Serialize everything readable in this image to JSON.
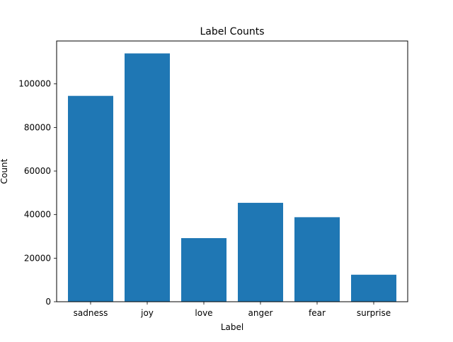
{
  "chart_data": {
    "type": "bar",
    "title": "Label Counts",
    "xlabel": "Label",
    "ylabel": "Count",
    "categories": [
      "sadness",
      "joy",
      "love",
      "anger",
      "fear",
      "surprise"
    ],
    "values": [
      94500,
      114000,
      29200,
      45400,
      38800,
      12400
    ],
    "ylim": [
      0,
      119700
    ],
    "yticks": [
      0,
      20000,
      40000,
      60000,
      80000,
      100000
    ],
    "ytick_labels": [
      "0",
      "20000",
      "40000",
      "60000",
      "80000",
      "100000"
    ],
    "bar_color": "#1f77b4",
    "grid": false,
    "legend": "none"
  }
}
